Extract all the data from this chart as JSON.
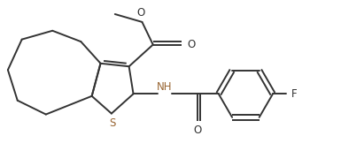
{
  "bg_color": "#ffffff",
  "line_color": "#333333",
  "S_color": "#996633",
  "NH_color": "#333333",
  "line_width": 1.4,
  "figsize": [
    3.85,
    1.88
  ],
  "dpi": 100,
  "xlim": [
    0.0,
    7.8
  ],
  "ylim": [
    0.0,
    3.8
  ]
}
